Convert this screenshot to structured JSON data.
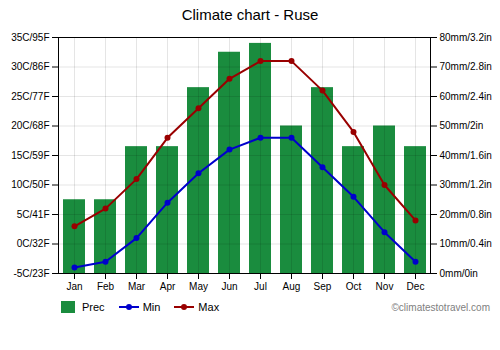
{
  "chart_data": {
    "type": "bar",
    "title": "Climate chart - Ruse",
    "categories": [
      "Jan",
      "Feb",
      "Mar",
      "Apr",
      "May",
      "Jun",
      "Jul",
      "Aug",
      "Sep",
      "Oct",
      "Nov",
      "Dec"
    ],
    "series": [
      {
        "name": "Prec",
        "type": "bar",
        "axis": "y2",
        "color": "#1a8c3e",
        "values": [
          25,
          25,
          43,
          43,
          63,
          75,
          78,
          50,
          63,
          43,
          50,
          43
        ]
      },
      {
        "name": "Min",
        "type": "line",
        "marker": "circle",
        "line_style": "solid",
        "color": "#0000cc",
        "values": [
          -4,
          -3,
          1,
          7,
          12,
          16,
          18,
          18,
          13,
          8,
          2,
          -3
        ]
      },
      {
        "name": "Max",
        "type": "line",
        "marker": "circle",
        "line_style": "solid",
        "color": "#990000",
        "values": [
          3,
          6,
          11,
          18,
          23,
          28,
          31,
          31,
          26,
          19,
          10,
          4
        ]
      }
    ],
    "ylim": [
      -5,
      35
    ],
    "yticks": [
      {
        "value": -5,
        "label": "-5C/23F"
      },
      {
        "value": 0,
        "label": "0C/32F"
      },
      {
        "value": 5,
        "label": "5C/41F"
      },
      {
        "value": 10,
        "label": "10C/50F"
      },
      {
        "value": 15,
        "label": "15C/59F"
      },
      {
        "value": 20,
        "label": "20C/68F"
      },
      {
        "value": 25,
        "label": "25C/77F"
      },
      {
        "value": 30,
        "label": "30C/86F"
      },
      {
        "value": 35,
        "label": "35C/95F"
      }
    ],
    "y2lim": [
      0,
      80
    ],
    "y2ticks": [
      {
        "value": 0,
        "label": "0mm/0in"
      },
      {
        "value": 10,
        "label": "10mm/0.4in"
      },
      {
        "value": 20,
        "label": "20mm/0.8in"
      },
      {
        "value": 30,
        "label": "30mm/1.2in"
      },
      {
        "value": 40,
        "label": "40mm/1.6in"
      },
      {
        "value": 50,
        "label": "50mm/2in"
      },
      {
        "value": 60,
        "label": "60mm/2.4in"
      },
      {
        "value": 70,
        "label": "70mm/2.8in"
      },
      {
        "value": 80,
        "label": "80mm/3.2in"
      }
    ],
    "grid": true,
    "legend": "bottom",
    "annotations": [
      "©climatestotravel.com"
    ]
  }
}
